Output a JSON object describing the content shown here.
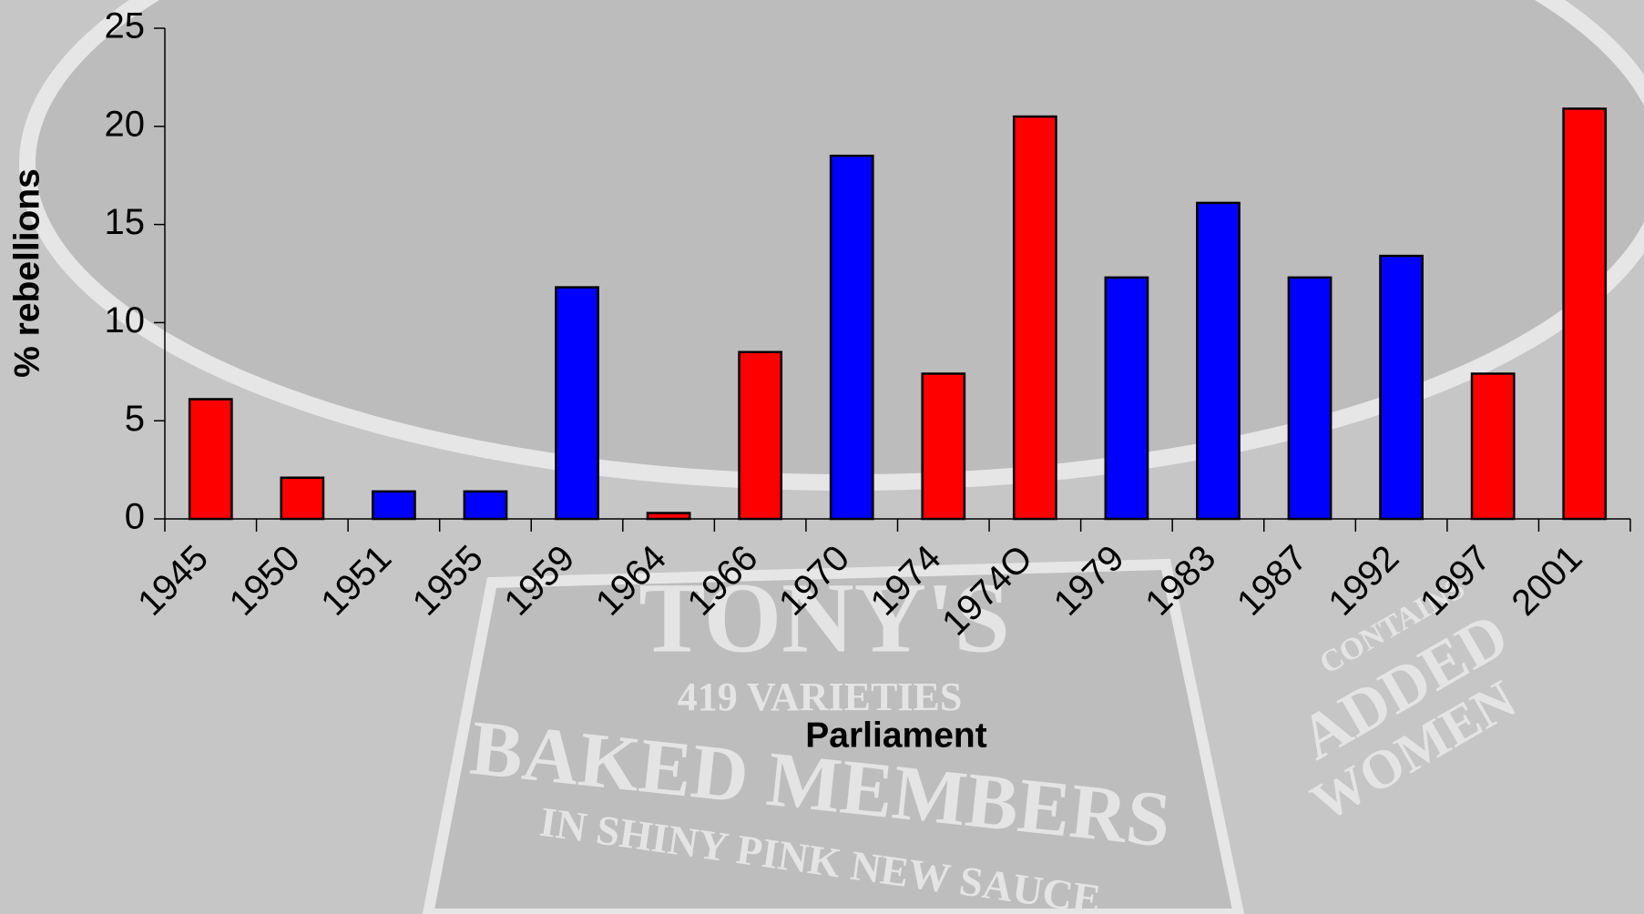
{
  "chart_data": {
    "type": "bar",
    "x_label": "Parliament",
    "y_label": "% rebellions",
    "categories": [
      "1945",
      "1950",
      "1951",
      "1955",
      "1959",
      "1964",
      "1966",
      "1970",
      "1974",
      "1974O",
      "1979",
      "1983",
      "1987",
      "1992",
      "1997",
      "2001"
    ],
    "values": [
      6.1,
      2.1,
      1.4,
      1.4,
      11.8,
      0.3,
      8.5,
      18.5,
      7.4,
      20.5,
      12.3,
      16.1,
      12.3,
      13.4,
      7.4,
      20.9
    ],
    "colors": [
      "#ff0000",
      "#ff0000",
      "#0000ff",
      "#0000ff",
      "#0000ff",
      "#ff0000",
      "#ff0000",
      "#0000ff",
      "#ff0000",
      "#ff0000",
      "#0000ff",
      "#0000ff",
      "#0000ff",
      "#0000ff",
      "#ff0000",
      "#ff0000"
    ],
    "ylim": [
      0,
      25
    ],
    "yticks": [
      0,
      5,
      10,
      15,
      20,
      25
    ],
    "grid": false
  },
  "background_text": [
    "TONY'S",
    "419 VARIETIES",
    "BAKED MEMBERS",
    "IN SHINY PINK NEW SAUCE",
    "CONTAINS",
    "ADDED",
    "WOMEN"
  ]
}
